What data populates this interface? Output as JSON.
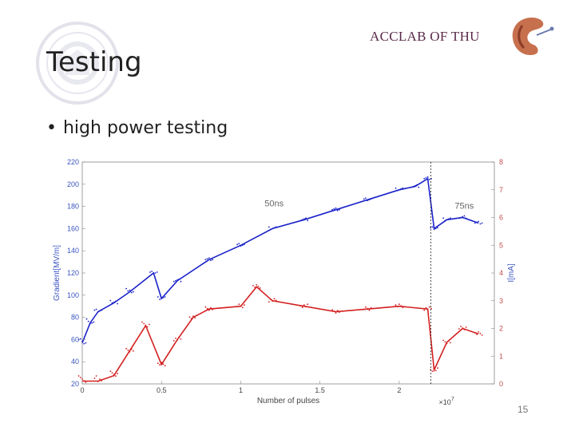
{
  "slide": {
    "title": "Testing",
    "brand": "ACCLAB OF THU",
    "bullet": "high power testing",
    "page_number": "15"
  },
  "icons": {
    "seal": "university-seal-icon",
    "logo": "accelerator-logo-icon"
  },
  "colors": {
    "gradient_series": "#1a22c8",
    "current_series": "#d42020",
    "brand_text": "#5a2a48"
  },
  "chart_data": {
    "type": "scatter",
    "xlabel": "Number of pulses",
    "x_multiplier": "×10",
    "x_multiplier_exp": "7",
    "ylabel_left": "Gradient[MV/m]",
    "ylabel_right": "I[mA]",
    "xlim": [
      0,
      2.6
    ],
    "ylim_left": [
      20,
      220
    ],
    "ylim_right": [
      0,
      8
    ],
    "x_ticks": [
      "0",
      "0.5",
      "1",
      "1.5",
      "2"
    ],
    "x_tick_values": [
      0,
      0.5,
      1,
      1.5,
      2
    ],
    "y_ticks_left": [
      "20",
      "40",
      "60",
      "80",
      "100",
      "120",
      "140",
      "160",
      "180",
      "200",
      "220"
    ],
    "y_ticks_right": [
      "0",
      "1",
      "2",
      "3",
      "4",
      "5",
      "6",
      "7",
      "8"
    ],
    "annotations": [
      {
        "text": "50ns",
        "x": 1.15,
        "y": 180
      },
      {
        "text": "75ns",
        "x": 2.35,
        "y": 178
      }
    ],
    "vline_x": 2.2,
    "series": [
      {
        "axis": "left",
        "x": [
          0,
          0.05,
          0.1,
          0.2,
          0.3,
          0.45,
          0.5,
          0.6,
          0.8,
          1.0,
          1.2,
          1.4,
          1.6,
          1.8,
          2.0,
          2.1,
          2.18,
          2.22,
          2.3,
          2.4,
          2.5
        ],
        "y": [
          57,
          75,
          85,
          93,
          103,
          120,
          97,
          113,
          132,
          145,
          160,
          168,
          177,
          186,
          195,
          198,
          205,
          160,
          168,
          170,
          165
        ]
      },
      {
        "axis": "right",
        "x": [
          0,
          0.1,
          0.2,
          0.3,
          0.4,
          0.5,
          0.6,
          0.7,
          0.8,
          1.0,
          1.1,
          1.2,
          1.4,
          1.6,
          1.8,
          2.0,
          2.18,
          2.22,
          2.3,
          2.4,
          2.5
        ],
        "y": [
          0.1,
          0.1,
          0.3,
          1.2,
          2.1,
          0.7,
          1.6,
          2.4,
          2.7,
          2.8,
          3.5,
          3.0,
          2.8,
          2.6,
          2.7,
          2.8,
          2.7,
          0.5,
          1.5,
          2.0,
          1.8
        ]
      }
    ]
  }
}
